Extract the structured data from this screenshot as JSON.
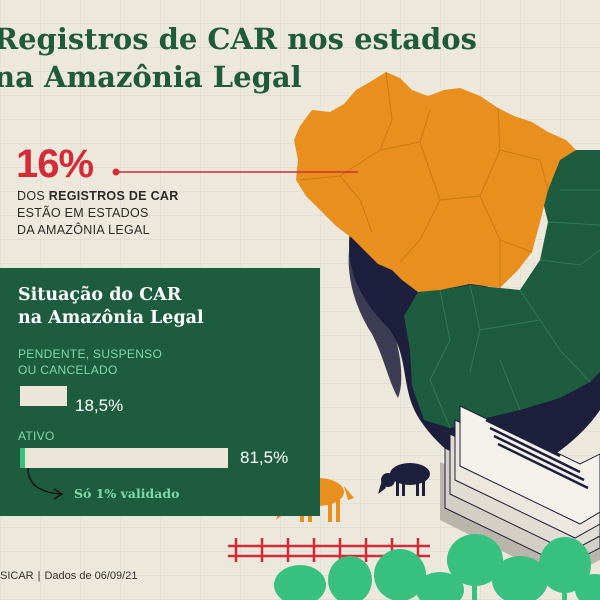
{
  "title": {
    "line1": "Registros de CAR nos estados",
    "line2": "na Amazônia Legal"
  },
  "highlight": {
    "percent": "16%",
    "text_prefix": "DOS ",
    "text_bold": "REGISTROS DE CAR",
    "text_line2": "ESTÃO EM ESTADOS",
    "text_line3": "DA AMAZÔNIA LEGAL",
    "color": "#d42b3a"
  },
  "panel": {
    "title_line1": "Situação do CAR",
    "title_line2": "na Amazônia Legal",
    "background": "#1e5c40"
  },
  "chart_data": {
    "type": "bar",
    "categories": [
      "PENDENTE, SUSPENSO OU CANCELADO",
      "ATIVO"
    ],
    "category_lines": [
      [
        "PENDENTE, SUSPENSO",
        "OU CANCELADO"
      ],
      [
        "ATIVO"
      ]
    ],
    "values": [
      18.5,
      81.5
    ],
    "value_labels": [
      "18,5%",
      "81,5%"
    ],
    "validated_share": 1,
    "annotation": "Só 1% validado",
    "unit": "%",
    "ylim": [
      0,
      81.5
    ]
  },
  "source": {
    "origin": "SICAR",
    "date": "Dados de 06/09/21"
  },
  "colors": {
    "background": "#ece8dc",
    "amazon_states": "#e88f1e",
    "other_states": "#1e5c40",
    "state_borders": "#d9a24a",
    "title": "#1f5a3d",
    "accent_green": "#7ed9a9",
    "bar": "#ebe6d8",
    "shadow": "#1d1f3d"
  },
  "illustration": {
    "map": "brazil-map",
    "animals": [
      "orange-cow-icon",
      "navy-cow-icon"
    ],
    "documents": "document-stack-icon",
    "fence": "red-fence-icon",
    "trees": "palm-trees-icon"
  }
}
